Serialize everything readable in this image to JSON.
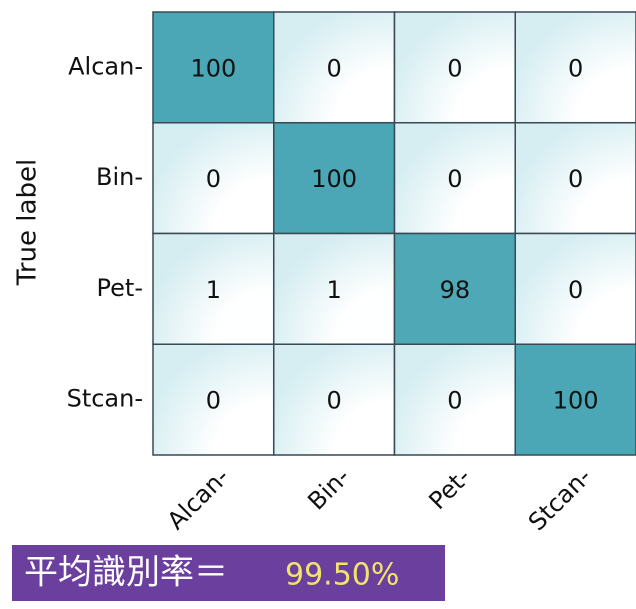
{
  "chart_data": {
    "type": "heatmap",
    "ylabel": "True label",
    "x_categories": [
      "Alcan-",
      "Bin-",
      "Pet-",
      "Stcan-"
    ],
    "y_categories": [
      "Alcan-",
      "Bin-",
      "Pet-",
      "Stcan-"
    ],
    "values": [
      [
        100,
        0,
        0,
        0
      ],
      [
        0,
        100,
        0,
        0
      ],
      [
        1,
        1,
        98,
        0
      ],
      [
        0,
        0,
        0,
        100
      ]
    ],
    "colors": [
      "#d6eef2",
      "#4ba7b5"
    ],
    "value_range": [
      0,
      100
    ],
    "summary": {
      "label": "平均識別率＝",
      "value_label": "99.50%",
      "color": "#6b3f9e"
    }
  }
}
